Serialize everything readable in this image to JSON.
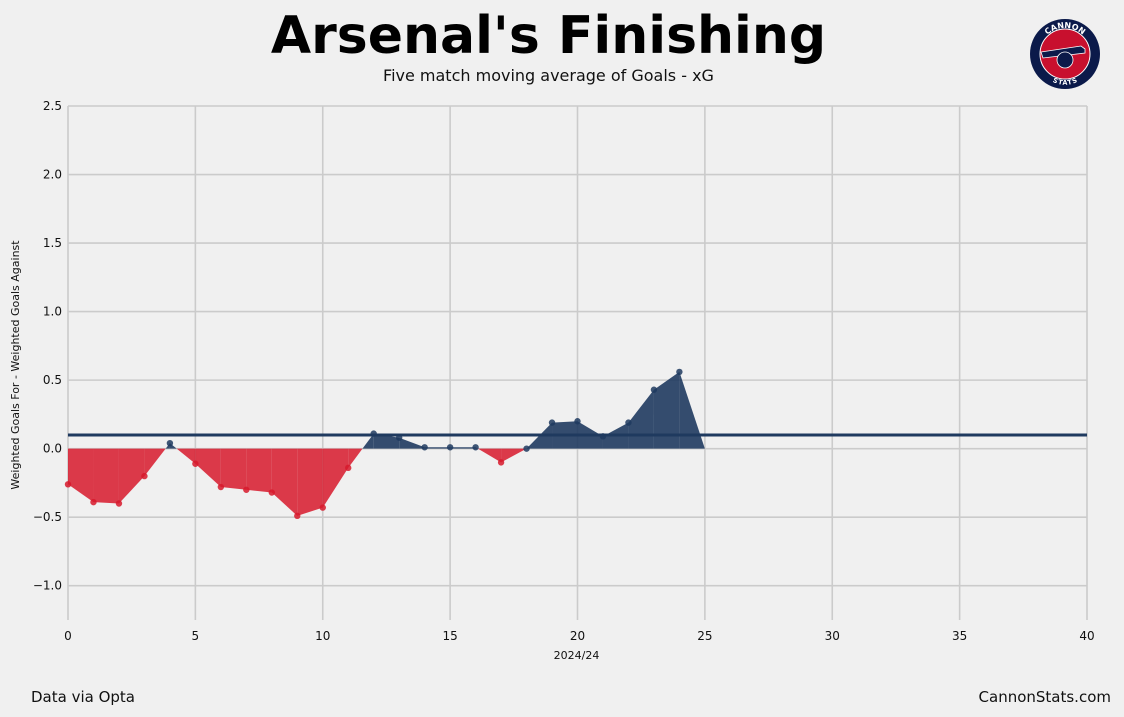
{
  "header": {
    "title": "Arsenal's Finishing",
    "subtitle": "Five match moving average of Goals - xG"
  },
  "logo": {
    "top_text": "CANNON",
    "bottom_text": "STATS",
    "colors": {
      "outer": "#0b1a4a",
      "inner": "#c8102e"
    }
  },
  "footer": {
    "source": "Data via Opta",
    "site": "CannonStats.com"
  },
  "colors": {
    "positive": "#1f3a5f",
    "negative": "#d7192c",
    "reference_line": "#1f3a5f",
    "grid": "#cbcbcb",
    "background": "#f0f0f0"
  },
  "chart_data": {
    "type": "area",
    "title": "Arsenal's Finishing",
    "subtitle": "Five match moving average of Goals - xG",
    "xlabel": "2024/24",
    "ylabel": "Weighted Goals For - Weighted Goals Against",
    "xlim": [
      0,
      40
    ],
    "ylim": [
      -1.25,
      2.5
    ],
    "xticks": [
      0,
      5,
      10,
      15,
      20,
      25,
      30,
      35,
      40
    ],
    "yticks": [
      -1.0,
      -0.5,
      0.0,
      0.5,
      1.0,
      1.5,
      2.0,
      2.5
    ],
    "ytick_labels": [
      "−1.0",
      "−0.5",
      "0.0",
      "0.5",
      "1.0",
      "1.5",
      "2.0",
      "2.5"
    ],
    "grid": true,
    "reference_line_y": 0.1,
    "series": [
      {
        "x": [
          0,
          1,
          2,
          3,
          4,
          5,
          6,
          7,
          8,
          9,
          10,
          11,
          12,
          13,
          14,
          15,
          16,
          17,
          18,
          19,
          20,
          21,
          22,
          23,
          24
        ],
        "values": [
          -0.26,
          -0.39,
          -0.4,
          -0.2,
          0.04,
          -0.11,
          -0.28,
          -0.3,
          -0.32,
          -0.49,
          -0.43,
          -0.14,
          0.11,
          0.08,
          0.01,
          0.01,
          0.01,
          -0.1,
          0.0,
          0.19,
          0.2,
          0.09,
          0.19,
          0.43,
          0.56
        ]
      }
    ],
    "area_end_x": 25
  }
}
